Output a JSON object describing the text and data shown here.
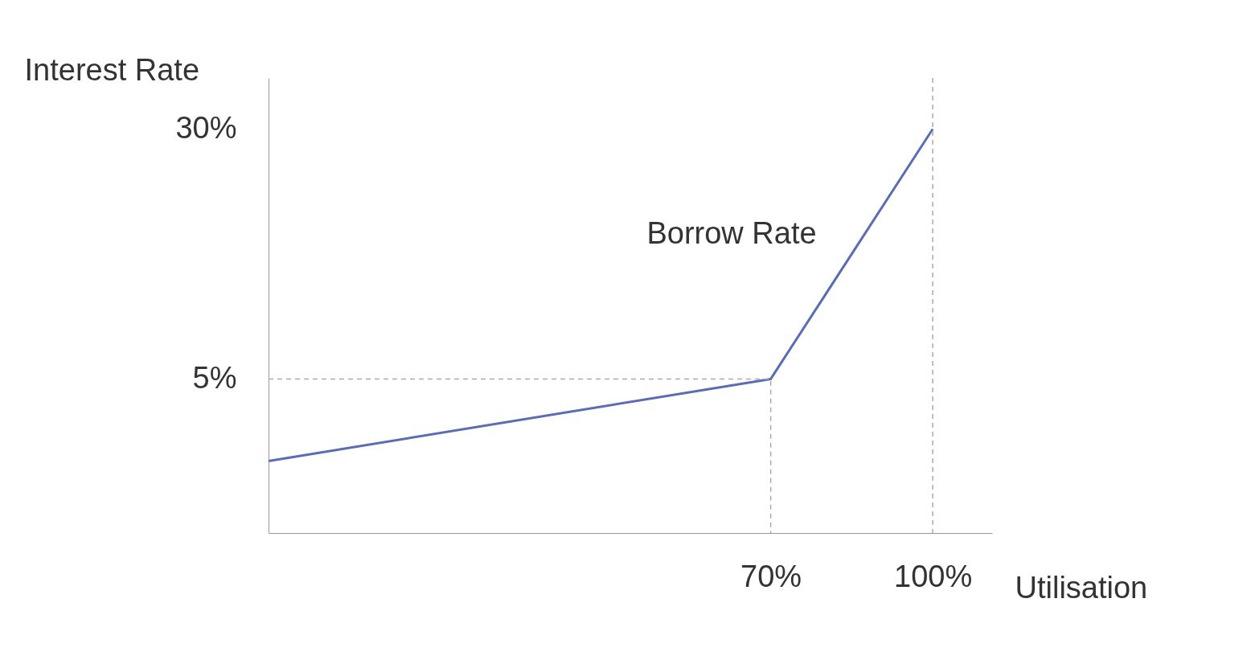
{
  "chart_data": {
    "type": "line",
    "xlabel": "Utilisation",
    "ylabel": "Interest Rate",
    "xlim": [
      -23,
      111
    ],
    "ylim": [
      -10.4,
      35.1
    ],
    "xticks": [
      {
        "value": 70,
        "label": "70%"
      },
      {
        "value": 100,
        "label": "100%"
      }
    ],
    "yticks": [
      {
        "value": 5,
        "label": "5%"
      },
      {
        "value": 30,
        "label": "30%"
      }
    ],
    "series": [
      {
        "color": "#5a6db4",
        "x": [
          -23,
          70,
          100
        ],
        "values": [
          -3.2,
          5,
          30
        ],
        "line_style": "solid"
      },
      {
        "color": "#aaaaaa",
        "x": [
          -23,
          70,
          70
        ],
        "values": [
          5,
          5,
          -10.4
        ],
        "line_style": "dashed"
      }
    ],
    "ref_lines": [
      {
        "axis": "x",
        "value": 100,
        "color": "#aaaaaa",
        "line_style": "dashed"
      }
    ],
    "annotations": [
      "Borrow Rate"
    ],
    "marker": "none"
  }
}
